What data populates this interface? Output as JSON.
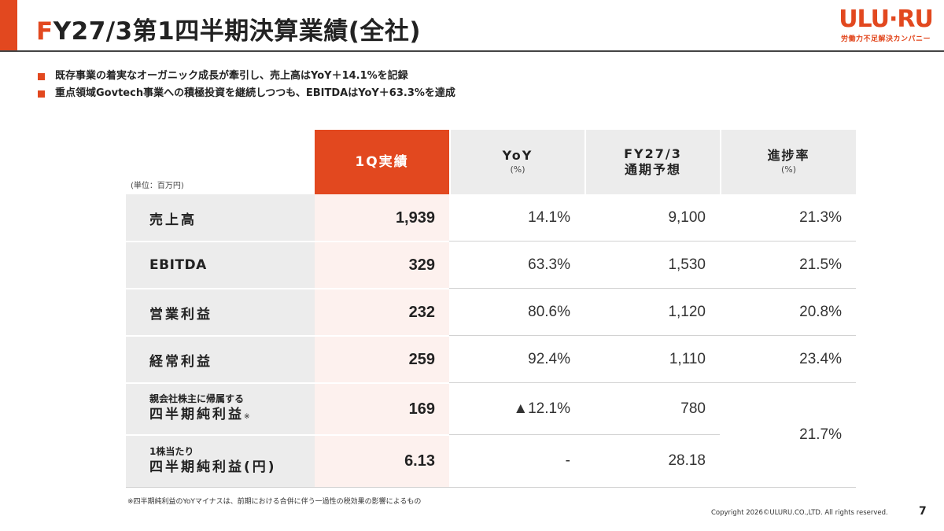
{
  "header": {
    "title_first": "F",
    "title_rest": "Y27/3第1四半期決算業績(全社)",
    "logo_main": "ULU·RU",
    "logo_sub": "労働力不足解決カンパニー"
  },
  "bullets": [
    "既存事業の着実なオーガニック成長が牽引し、売上高はYoY＋14.1%を記録",
    "重点領域Govtech事業への積極投資を継続しつつも、EBITDAはYoY＋63.3%を達成"
  ],
  "table": {
    "unit": "(単位：百万円)",
    "headers": {
      "actual": "1Q実績",
      "yoy": "YoY",
      "yoy_sub": "(%)",
      "forecast_l1": "FY27/3",
      "forecast_l2": "通期予想",
      "progress": "進捗率",
      "progress_sub": "(%)"
    },
    "rows": [
      {
        "label": "売上高",
        "actual": "1,939",
        "yoy": "14.1%",
        "forecast": "9,100",
        "progress": "21.3%"
      },
      {
        "label": "EBITDA",
        "actual": "329",
        "yoy": "63.3%",
        "forecast": "1,530",
        "progress": "21.5%"
      },
      {
        "label": "営業利益",
        "actual": "232",
        "yoy": "80.6%",
        "forecast": "1,120",
        "progress": "20.8%"
      },
      {
        "label": "経常利益",
        "actual": "259",
        "yoy": "92.4%",
        "forecast": "1,110",
        "progress": "23.4%"
      },
      {
        "label_small": "親会社株主に帰属する",
        "label_big": "四半期純利益",
        "label_note": "※",
        "actual": "169",
        "yoy": "▲12.1%",
        "forecast": "780"
      },
      {
        "label_small": "1株当たり",
        "label_big": "四半期純利益(円)",
        "actual": "6.13",
        "yoy": "-",
        "forecast": "28.18"
      }
    ],
    "merged_progress": "21.7%"
  },
  "footnote": "※四半期純利益のYoYマイナスは、前期における合併に伴う一過性の税効果の影響によるもの",
  "copyright": "Copyright 2026©ULURU.CO.,LTD. All rights reserved.",
  "page_number": "7",
  "colors": {
    "accent": "#e2481f",
    "header_grey": "#ececec",
    "actual_tint": "#fdf1ee"
  }
}
